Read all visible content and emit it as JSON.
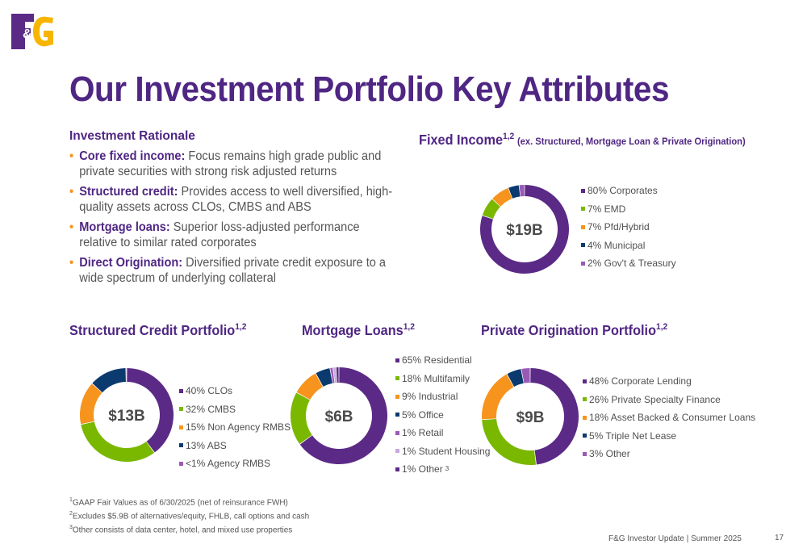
{
  "header": {
    "logo_text": "F&G",
    "title": "Our Investment Portfolio Key Attributes"
  },
  "rationale": {
    "heading": "Investment Rationale",
    "items": [
      {
        "label": "Core fixed income:",
        "text": "Focus remains high grade public and private securities with strong risk adjusted returns"
      },
      {
        "label": "Structured credit:",
        "text": "Provides access to well diversified, high-quality assets across CLOs, CMBS and ABS"
      },
      {
        "label": "Mortgage loans:",
        "text": "Superior loss-adjusted performance relative to similar rated corporates"
      },
      {
        "label": "Direct Origination:",
        "text": "Diversified private credit exposure to a wide spectrum of underlying collateral"
      }
    ]
  },
  "colors": {
    "purple": "#5b2a86",
    "green": "#7ab800",
    "orange": "#f7941d",
    "navy": "#0b3a6e",
    "violet": "#9b59b6",
    "light_violet": "#c7a8e0"
  },
  "chart_data": [
    {
      "type": "pie",
      "title": "Fixed Income",
      "title_sup": "1,2",
      "title_note": "(ex. Structured, Mortgage Loan & Private Origination)",
      "center_label": "$19B",
      "slices": [
        {
          "label": "80% Corporates",
          "value": 80,
          "color": "#5b2a86"
        },
        {
          "label": "7% EMD",
          "value": 7,
          "color": "#7ab800"
        },
        {
          "label": "7% Pfd/Hybrid",
          "value": 7,
          "color": "#f7941d"
        },
        {
          "label": "4% Municipal",
          "value": 4,
          "color": "#0b3a6e"
        },
        {
          "label": "2% Gov't & Treasury",
          "value": 2,
          "color": "#9b59b6"
        }
      ]
    },
    {
      "type": "pie",
      "title": "Structured Credit Portfolio",
      "title_sup": "1,2",
      "center_label": "$13B",
      "slices": [
        {
          "label": "40% CLOs",
          "value": 40,
          "color": "#5b2a86"
        },
        {
          "label": "32% CMBS",
          "value": 32,
          "color": "#7ab800"
        },
        {
          "label": "15% Non Agency RMBS",
          "value": 15,
          "color": "#f7941d"
        },
        {
          "label": "13% ABS",
          "value": 13,
          "color": "#0b3a6e"
        },
        {
          "label": "<1% Agency RMBS",
          "value": 0.3,
          "color": "#9b59b6"
        }
      ]
    },
    {
      "type": "pie",
      "title": "Mortgage Loans",
      "title_sup": "1,2",
      "center_label": "$6B",
      "slices": [
        {
          "label": "65% Residential",
          "value": 65,
          "color": "#5b2a86"
        },
        {
          "label": "18% Multifamily",
          "value": 18,
          "color": "#7ab800"
        },
        {
          "label": "9% Industrial",
          "value": 9,
          "color": "#f7941d"
        },
        {
          "label": "5% Office",
          "value": 5,
          "color": "#0b3a6e"
        },
        {
          "label": "1% Retail",
          "value": 1,
          "color": "#9b59b6"
        },
        {
          "label": "1% Student Housing",
          "value": 1,
          "color": "#c7a8e0"
        },
        {
          "label": "1% Other",
          "label_sup": "3",
          "value": 1,
          "color": "#5b2a86"
        }
      ]
    },
    {
      "type": "pie",
      "title": "Private Origination Portfolio",
      "title_sup": "1,2",
      "center_label": "$9B",
      "slices": [
        {
          "label": "48% Corporate Lending",
          "value": 48,
          "color": "#5b2a86"
        },
        {
          "label": "26% Private Specialty Finance",
          "value": 26,
          "color": "#7ab800"
        },
        {
          "label": "18% Asset Backed & Consumer Loans",
          "value": 18,
          "color": "#f7941d"
        },
        {
          "label": "5% Triple Net Lease",
          "value": 5,
          "color": "#0b3a6e"
        },
        {
          "label": "3% Other",
          "value": 3,
          "color": "#9b59b6"
        }
      ]
    }
  ],
  "footnotes": [
    {
      "sup": "1",
      "text": "GAAP Fair Values as of 6/30/2025 (net of reinsurance FWH)"
    },
    {
      "sup": "2",
      "text": "Excludes $5.9B of alternatives/equity, FHLB, call options and cash"
    },
    {
      "sup": "3",
      "text": "Other consists of data center, hotel, and mixed use properties"
    }
  ],
  "footer": {
    "text": "F&G Investor Update | Summer 2025",
    "page": "17"
  }
}
